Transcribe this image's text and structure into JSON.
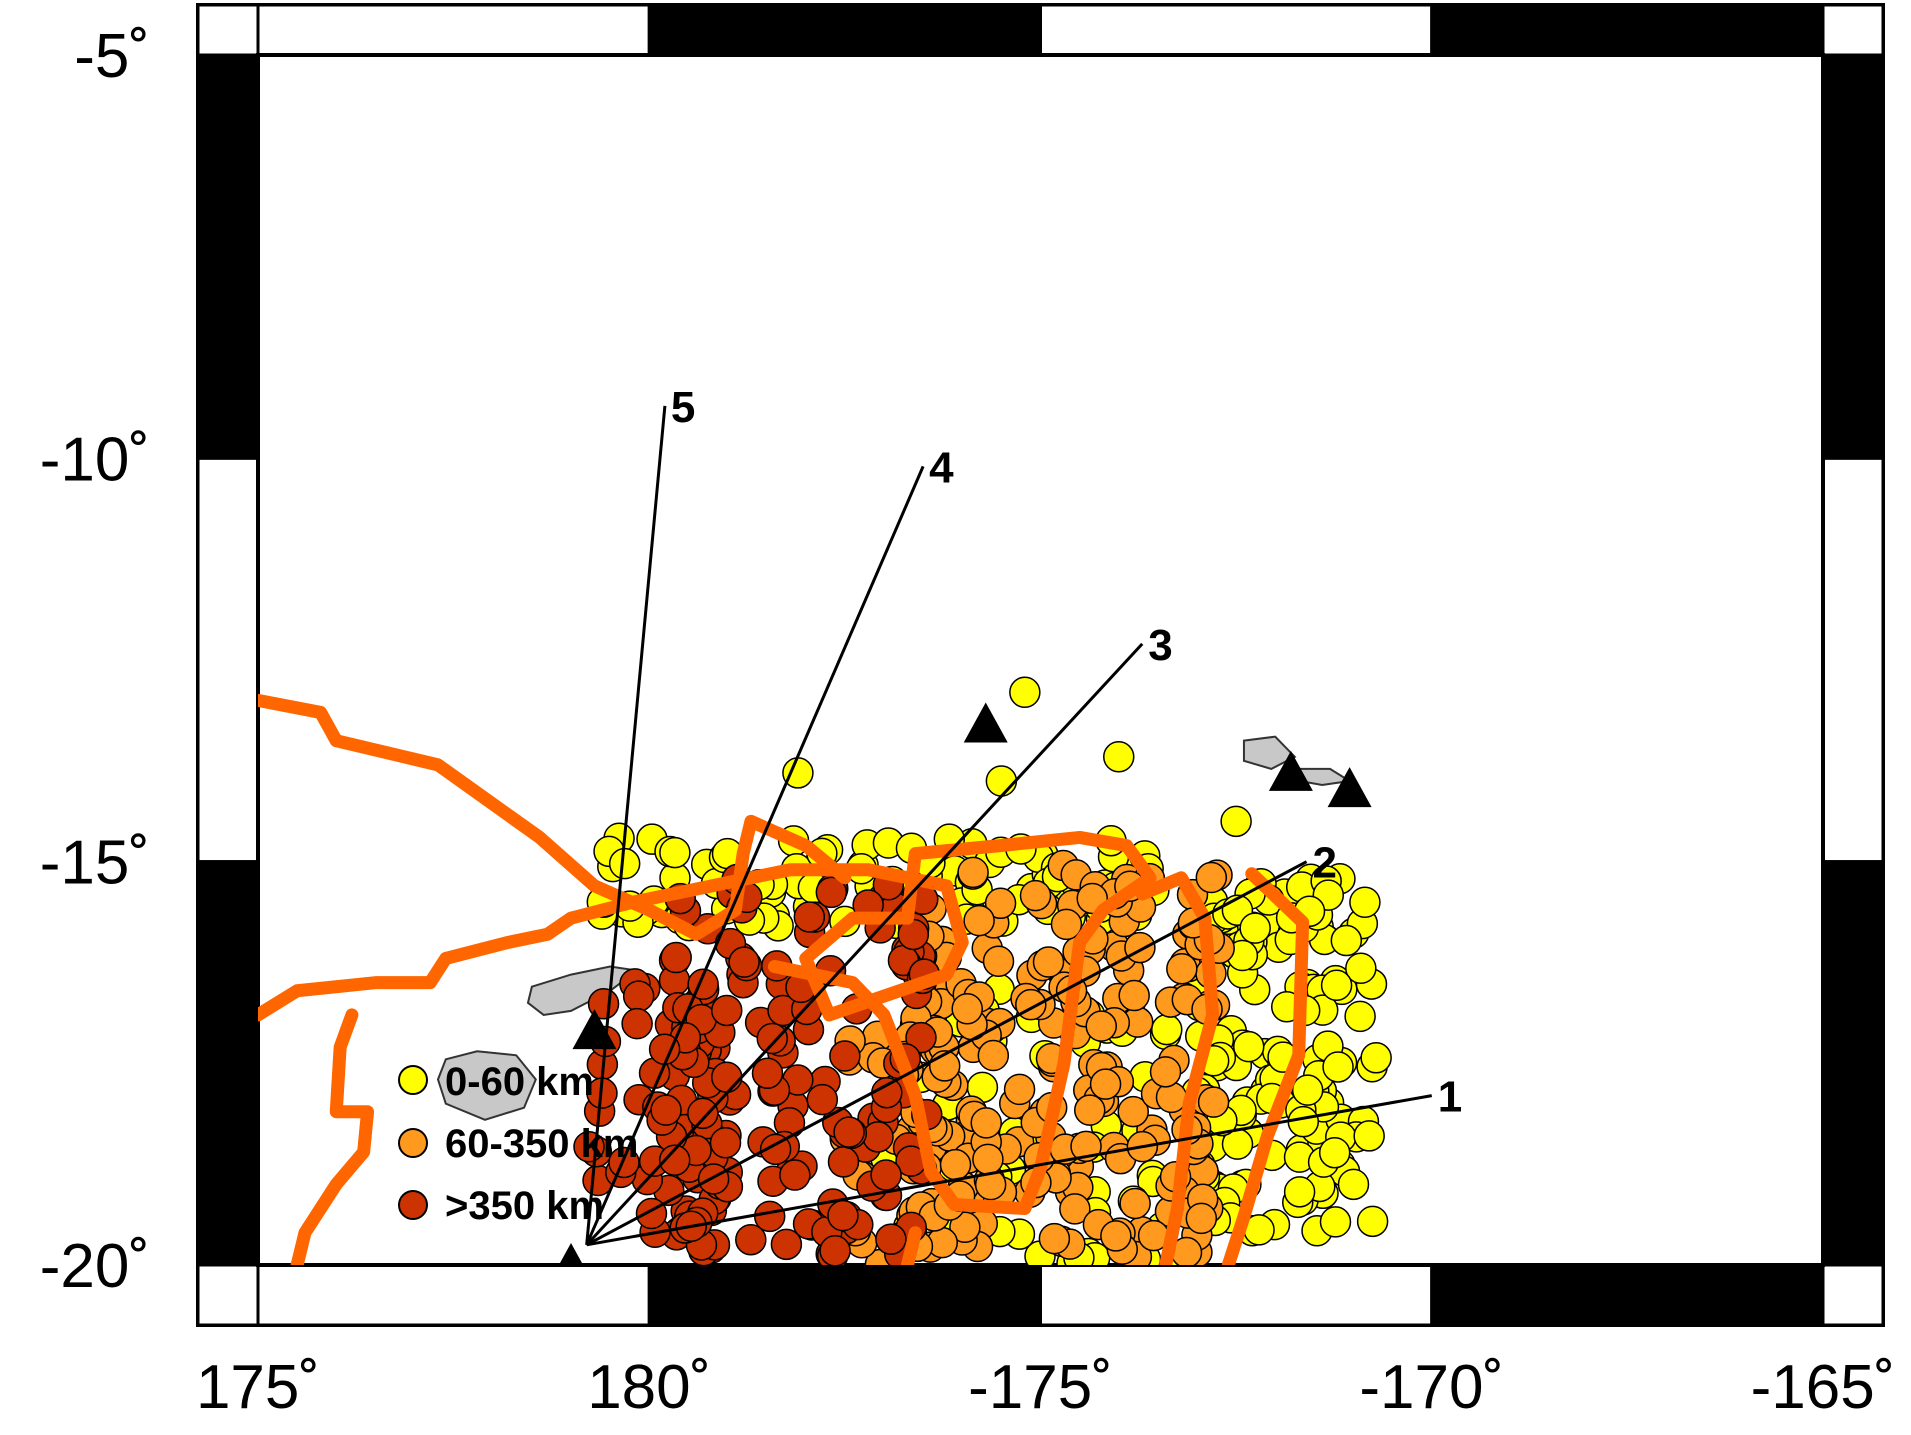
{
  "map": {
    "lon_range": [
      175,
      195
    ],
    "lat_range": [
      -20,
      -5
    ],
    "lon_tick_labels": [
      {
        "lon": 175,
        "label": "175˚"
      },
      {
        "lon": 180,
        "label": "180˚"
      },
      {
        "lon": 185,
        "label": "-175˚"
      },
      {
        "lon": 190,
        "label": "-170˚"
      },
      {
        "lon": 195,
        "label": "-165˚"
      }
    ],
    "lat_tick_labels": [
      {
        "lat": -5,
        "label": "-5˚"
      },
      {
        "lat": -10,
        "label": "-10˚"
      },
      {
        "lat": -15,
        "label": "-15˚"
      },
      {
        "lat": -20,
        "label": "-20˚"
      }
    ],
    "colors": {
      "shallow": "#ffff00",
      "intermediate": "#ff9a1f",
      "deep": "#cc3300",
      "plate_boundary": "#ff6600",
      "land": "#c8c8c8",
      "frame": "#000000"
    }
  },
  "legend": {
    "items": [
      {
        "label": "0-60 km",
        "color": "#ffff00"
      },
      {
        "label": "60-350 km",
        "color": "#ff9a1f"
      },
      {
        "label": ">350 km",
        "color": "#cc3300"
      }
    ]
  },
  "profiles": {
    "origin": [
      179.2,
      -19.75
    ],
    "lines": [
      {
        "label": "1",
        "end": [
          190.0,
          -17.9
        ]
      },
      {
        "label": "2",
        "end": [
          188.4,
          -15.0
        ]
      },
      {
        "label": "3",
        "end": [
          186.3,
          -12.3
        ]
      },
      {
        "label": "4",
        "end": [
          183.5,
          -10.1
        ]
      },
      {
        "label": "5",
        "end": [
          180.2,
          -9.35
        ]
      }
    ]
  },
  "volcanoes": [
    [
      184.3,
      -13.3
    ],
    [
      188.2,
      -13.9
    ],
    [
      188.95,
      -14.1
    ],
    [
      179.3,
      -17.1
    ],
    [
      179.0,
      -20.0
    ]
  ],
  "islands": [
    {
      "name": "fiji-viti-levu",
      "coords": [
        [
          177.4,
          -17.45
        ],
        [
          177.8,
          -17.35
        ],
        [
          178.3,
          -17.4
        ],
        [
          178.55,
          -17.7
        ],
        [
          178.4,
          -18.05
        ],
        [
          177.9,
          -18.2
        ],
        [
          177.4,
          -18.0
        ],
        [
          177.3,
          -17.7
        ]
      ]
    },
    {
      "name": "fiji-vanua-levu",
      "coords": [
        [
          178.5,
          -16.55
        ],
        [
          179.0,
          -16.4
        ],
        [
          179.5,
          -16.3
        ],
        [
          179.85,
          -16.35
        ],
        [
          179.5,
          -16.6
        ],
        [
          179.0,
          -16.85
        ],
        [
          178.65,
          -16.9
        ],
        [
          178.45,
          -16.75
        ]
      ]
    },
    {
      "name": "samoa-savaii",
      "coords": [
        [
          187.6,
          -13.5
        ],
        [
          188.0,
          -13.45
        ],
        [
          188.25,
          -13.7
        ],
        [
          187.95,
          -13.85
        ],
        [
          187.6,
          -13.75
        ]
      ]
    },
    {
      "name": "samoa-upolu",
      "coords": [
        [
          188.2,
          -13.85
        ],
        [
          188.7,
          -13.85
        ],
        [
          188.95,
          -14.0
        ],
        [
          188.6,
          -14.05
        ],
        [
          188.2,
          -13.98
        ]
      ]
    }
  ],
  "plate_boundaries": [
    [
      [
        175.0,
        -13.0
      ],
      [
        175.8,
        -13.15
      ],
      [
        176.0,
        -13.5
      ],
      [
        177.3,
        -13.8
      ],
      [
        178.6,
        -14.7
      ],
      [
        179.3,
        -15.3
      ],
      [
        180.0,
        -15.6
      ],
      [
        180.6,
        -15.9
      ],
      [
        181.1,
        -15.6
      ]
    ],
    [
      [
        175.0,
        -16.9
      ],
      [
        175.5,
        -16.6
      ],
      [
        176.5,
        -16.5
      ],
      [
        177.2,
        -16.5
      ],
      [
        177.4,
        -16.2
      ],
      [
        178.2,
        -16.0
      ],
      [
        178.7,
        -15.9
      ],
      [
        179.0,
        -15.7
      ],
      [
        179.8,
        -15.5
      ],
      [
        180.8,
        -15.3
      ],
      [
        181.8,
        -15.1
      ],
      [
        182.8,
        -15.1
      ],
      [
        183.8,
        -15.3
      ],
      [
        184.0,
        -16.0
      ],
      [
        183.8,
        -16.4
      ],
      [
        182.3,
        -16.9
      ],
      [
        182.0,
        -16.2
      ],
      [
        182.6,
        -15.7
      ],
      [
        183.3,
        -15.7
      ],
      [
        183.4,
        -14.9
      ],
      [
        184.5,
        -14.8
      ],
      [
        185.5,
        -14.7
      ],
      [
        186.1,
        -14.8
      ],
      [
        186.4,
        -15.2
      ],
      [
        185.8,
        -15.6
      ],
      [
        185.5,
        -16.0
      ],
      [
        185.3,
        -17.5
      ],
      [
        185.0,
        -18.8
      ],
      [
        184.8,
        -19.3
      ],
      [
        183.9,
        -19.25
      ],
      [
        183.6,
        -18.85
      ],
      [
        183.4,
        -17.9
      ],
      [
        183.0,
        -16.9
      ],
      [
        182.6,
        -16.5
      ],
      [
        181.6,
        -16.3
      ]
    ],
    [
      [
        176.2,
        -16.9
      ],
      [
        176.05,
        -17.3
      ],
      [
        176.0,
        -18.1
      ],
      [
        176.4,
        -18.1
      ],
      [
        176.35,
        -18.6
      ],
      [
        176.0,
        -19.0
      ],
      [
        175.6,
        -19.6
      ],
      [
        175.5,
        -20.0
      ]
    ],
    [
      [
        181.1,
        -15.6
      ],
      [
        181.2,
        -14.9
      ],
      [
        181.3,
        -14.5
      ],
      [
        182.0,
        -14.8
      ],
      [
        182.5,
        -15.2
      ]
    ],
    [
      [
        186.3,
        -15.4
      ],
      [
        186.8,
        -15.2
      ],
      [
        187.1,
        -15.7
      ],
      [
        187.2,
        -16.9
      ],
      [
        186.9,
        -18.0
      ],
      [
        186.75,
        -19.3
      ],
      [
        186.6,
        -20.0
      ]
    ],
    [
      [
        183.4,
        -19.6
      ],
      [
        183.3,
        -20.0
      ]
    ],
    [
      [
        187.7,
        -15.15
      ],
      [
        188.35,
        -15.75
      ],
      [
        188.3,
        -17.4
      ],
      [
        187.9,
        -18.4
      ],
      [
        187.6,
        -19.4
      ],
      [
        187.4,
        -20.0
      ]
    ]
  ]
}
